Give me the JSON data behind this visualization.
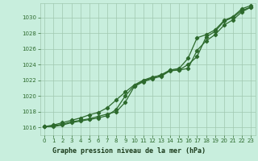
{
  "title": "Graphe pression niveau de la mer (hPa)",
  "x": [
    0,
    1,
    2,
    3,
    4,
    5,
    6,
    7,
    8,
    9,
    10,
    11,
    12,
    13,
    14,
    15,
    16,
    17,
    18,
    19,
    20,
    21,
    22,
    23
  ],
  "line1": [
    1016.1,
    1016.2,
    1016.4,
    1016.7,
    1016.9,
    1017.1,
    1017.4,
    1017.7,
    1018.0,
    1019.2,
    1021.2,
    1021.8,
    1022.2,
    1022.5,
    1023.2,
    1023.3,
    1024.0,
    1025.0,
    1027.5,
    1028.2,
    1029.5,
    1030.0,
    1030.9,
    1031.3
  ],
  "line2": [
    1016.1,
    1016.3,
    1016.6,
    1016.9,
    1017.2,
    1017.6,
    1017.9,
    1018.5,
    1019.5,
    1020.5,
    1021.4,
    1022.0,
    1022.4,
    1022.6,
    1023.3,
    1023.3,
    1023.5,
    1025.8,
    1027.0,
    1027.8,
    1029.0,
    1029.7,
    1030.7,
    1031.3
  ],
  "line3": [
    1016.1,
    1016.1,
    1016.3,
    1016.6,
    1016.8,
    1017.0,
    1017.2,
    1017.5,
    1018.3,
    1020.0,
    1021.3,
    1021.9,
    1022.3,
    1022.7,
    1023.3,
    1023.5,
    1024.8,
    1027.4,
    1027.8,
    1028.4,
    1029.6,
    1030.1,
    1031.1,
    1031.5
  ],
  "ylim": [
    1015.0,
    1031.8
  ],
  "yticks": [
    1016,
    1018,
    1020,
    1022,
    1024,
    1026,
    1028,
    1030
  ],
  "xlim": [
    -0.5,
    23.5
  ],
  "xticks": [
    0,
    1,
    2,
    3,
    4,
    5,
    6,
    7,
    8,
    9,
    10,
    11,
    12,
    13,
    14,
    15,
    16,
    17,
    18,
    19,
    20,
    21,
    22,
    23
  ],
  "line_color": "#2d6a2d",
  "bg_color": "#c8eedd",
  "grid_color": "#a0c8b0",
  "title_color": "#1a3a1a",
  "title_bg": "#5ab55a",
  "marker": "D",
  "marker_size": 2.2,
  "line_width": 0.9
}
